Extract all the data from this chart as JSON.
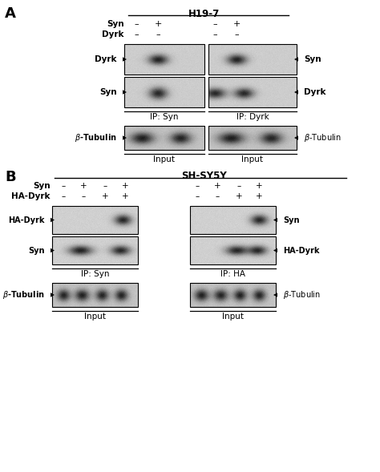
{
  "fig_width": 4.74,
  "fig_height": 5.89,
  "dpi": 100,
  "background": "#ffffff",
  "panel_A_label": "A",
  "panel_B_label": "B",
  "H19_7_title": "H19-7",
  "SH_SY5Y_title": "SH-SY5Y",
  "A_syn_row": [
    "–",
    "+",
    "–",
    "+"
  ],
  "A_dyrk_row": [
    "–",
    "–",
    "–",
    "–"
  ],
  "B_syn_row": [
    "–",
    "+",
    "–",
    "+",
    "–",
    "+",
    "–",
    "+"
  ],
  "B_hadyrk_row": [
    "–",
    "–",
    "+",
    "+",
    "–",
    "–",
    "+",
    "+"
  ],
  "IP_Syn_label": "IP: Syn",
  "IP_Dyrk_label": "IP: Dyrk",
  "IP_HA_label": "IP: HA",
  "Input_label": "Input",
  "arrow_color": "#000000",
  "text_color": "#000000",
  "line_color": "#000000",
  "blot_bg": 200,
  "band_intensity": 30
}
